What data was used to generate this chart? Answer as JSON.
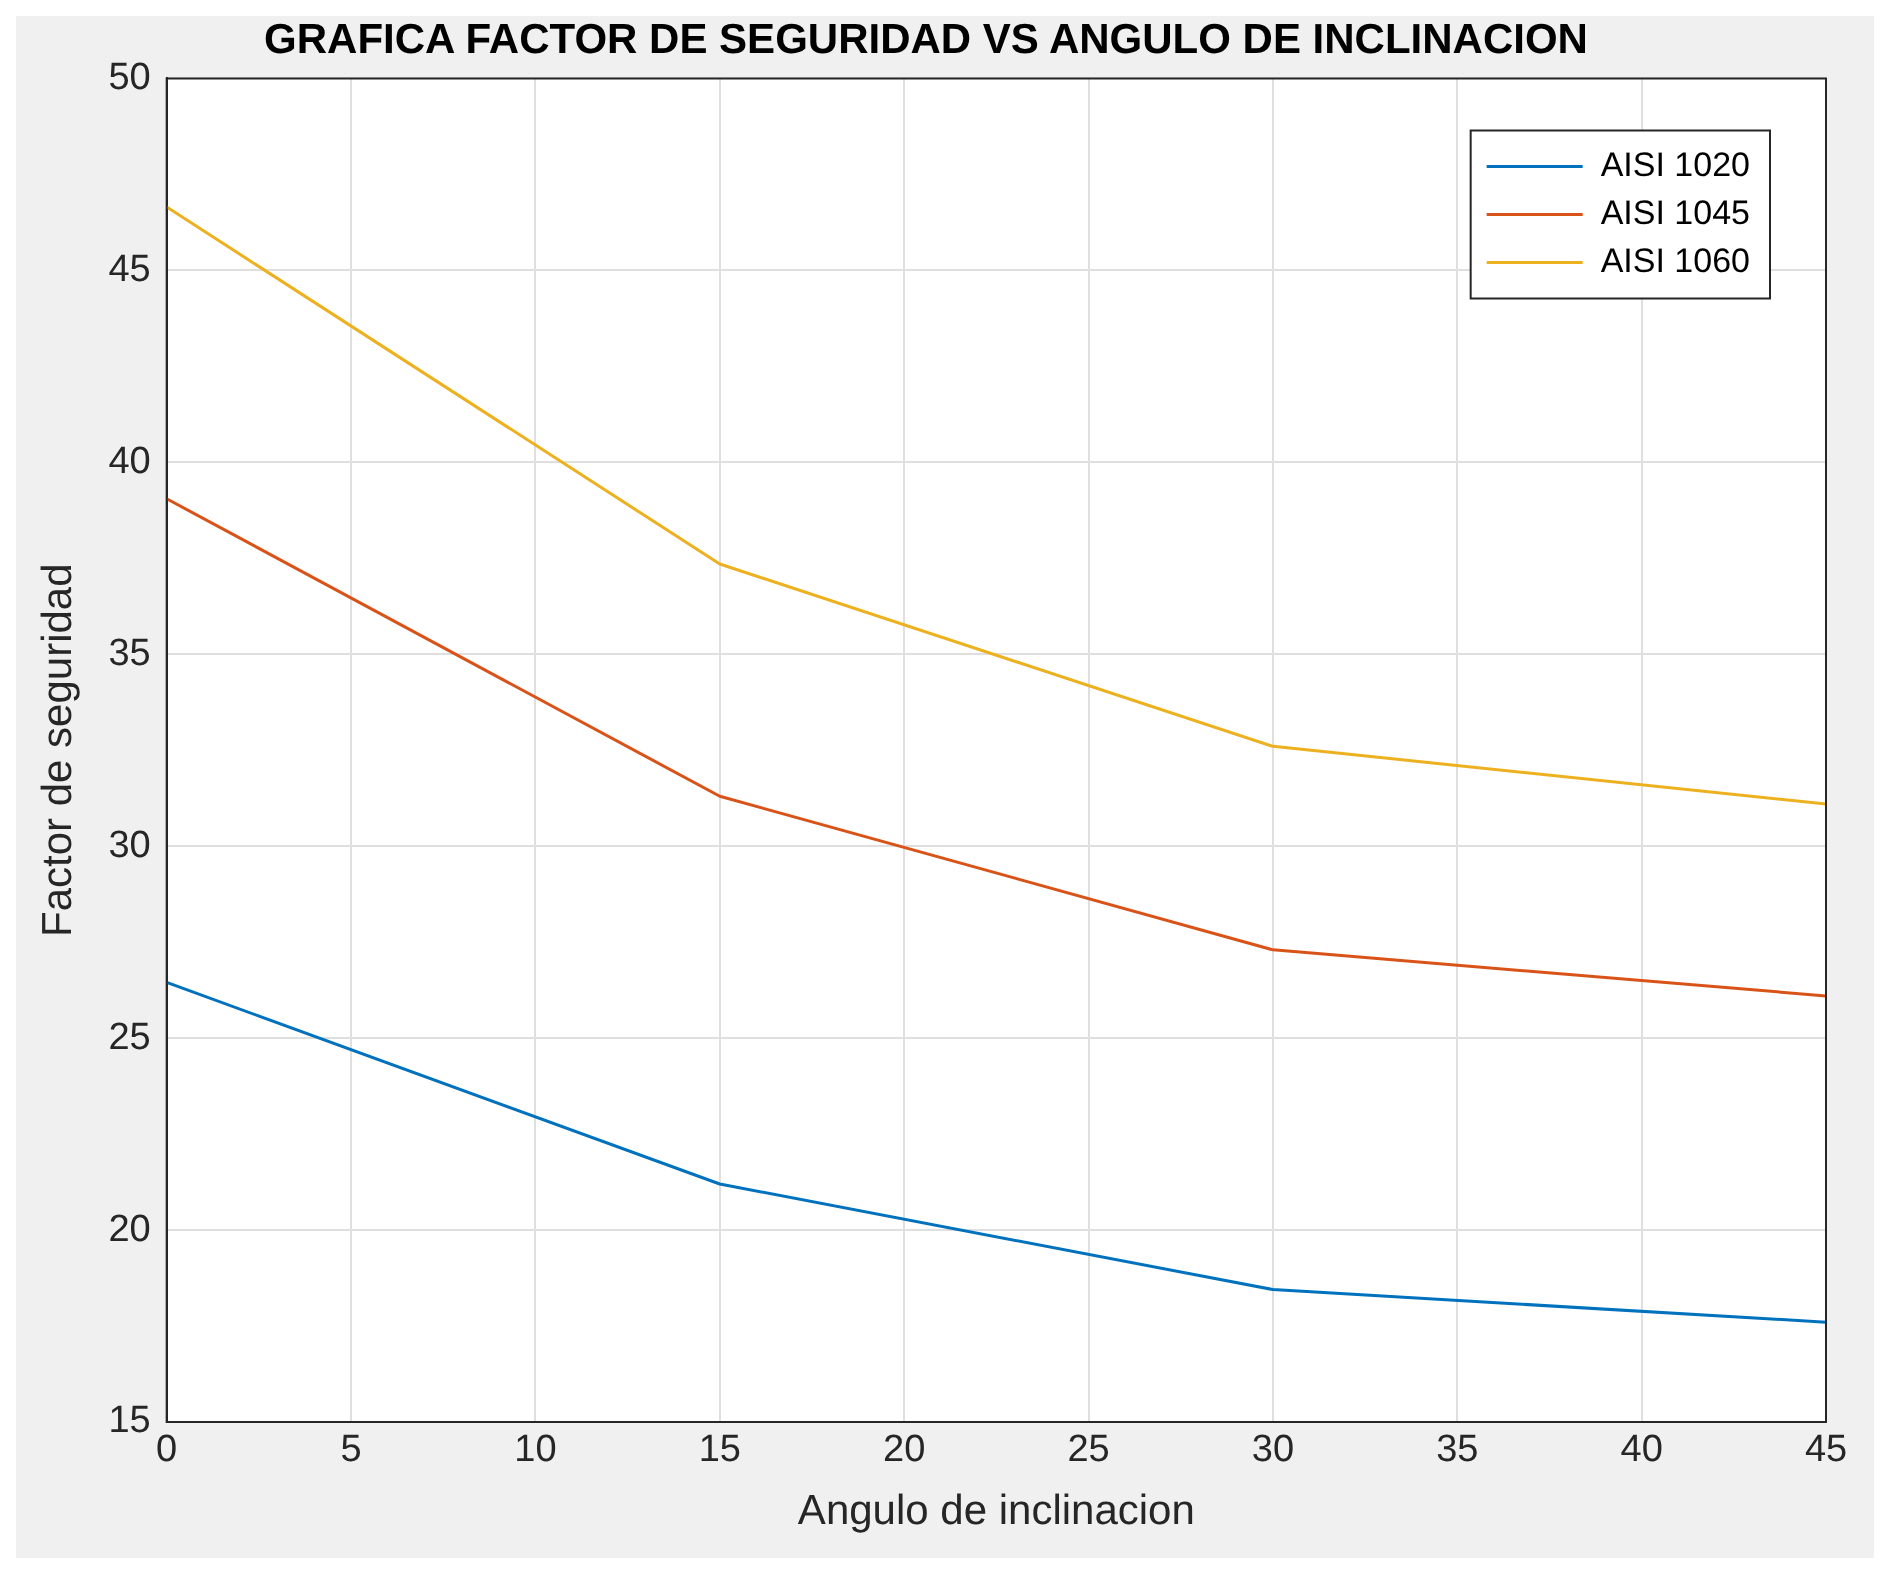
{
  "chart_data": {
    "type": "line",
    "title": "GRAFICA FACTOR DE SEGURIDAD VS ANGULO DE INCLINACION",
    "xlabel": "Angulo de inclinacion",
    "ylabel": "Factor de seguridad",
    "x": [
      0,
      15,
      30,
      45
    ],
    "series": [
      {
        "name": "AISI 1020",
        "color": "#0072bd",
        "values": [
          26.45,
          21.2,
          18.45,
          17.6
        ]
      },
      {
        "name": "AISI 1045",
        "color": "#d95319",
        "values": [
          39.05,
          31.3,
          27.3,
          26.1
        ]
      },
      {
        "name": "AISI 1060",
        "color": "#edb120",
        "values": [
          46.65,
          37.35,
          32.6,
          31.1
        ]
      }
    ],
    "xlim": [
      0,
      45
    ],
    "xticks": [
      0,
      5,
      10,
      15,
      20,
      25,
      30,
      35,
      40,
      45
    ],
    "ylim": [
      15,
      50
    ],
    "yticks": [
      15,
      20,
      25,
      30,
      35,
      40,
      45,
      50
    ],
    "grid": true,
    "legend": "top right",
    "marker": "none",
    "line_style": "solid"
  }
}
